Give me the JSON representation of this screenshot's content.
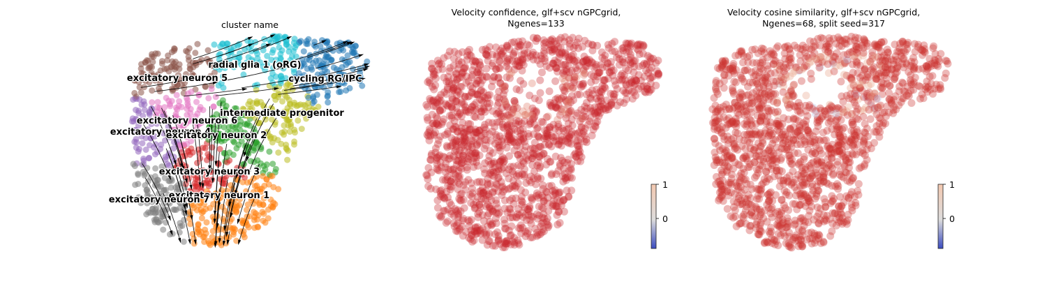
{
  "chart_data": [
    {
      "type": "scatter",
      "title": "cluster name",
      "clusters": [
        {
          "label": "radial glia 1 (oRG)",
          "color": "#17becf"
        },
        {
          "label": "cycling RG/IPC",
          "color": "#1f77b4"
        },
        {
          "label": "excitatory neuron 5",
          "color": "#8c564b"
        },
        {
          "label": "intermediate progenitor",
          "color": "#bcbd22"
        },
        {
          "label": "excitatory neuron 6",
          "color": "#e377c2"
        },
        {
          "label": "excitatory neuron 4",
          "color": "#9467bd"
        },
        {
          "label": "excitatory neuron 2",
          "color": "#2ca02c"
        },
        {
          "label": "excitatory neuron 3",
          "color": "#d62728"
        },
        {
          "label": "excitatory neuron 1",
          "color": "#ff7f0e"
        },
        {
          "label": "excitatory neuron 7",
          "color": "#7f7f7f"
        }
      ],
      "overlay": "velocity streamlines (black arrows)"
    },
    {
      "type": "scatter",
      "title": "Velocity confidence, glf+scv nGPCgrid,\nNgenes=133",
      "colormap": "coolwarm",
      "colorbar_ticks": [
        "1",
        "0"
      ],
      "dominant_color": "#c8282e"
    },
    {
      "type": "scatter",
      "title": "Velocity cosine similarity, glf+scv nGPCgrid,\nNgenes=68, split seed=317",
      "colormap": "coolwarm",
      "colorbar_ticks": [
        "1",
        "0"
      ],
      "dominant_color": "#cc3532"
    }
  ]
}
